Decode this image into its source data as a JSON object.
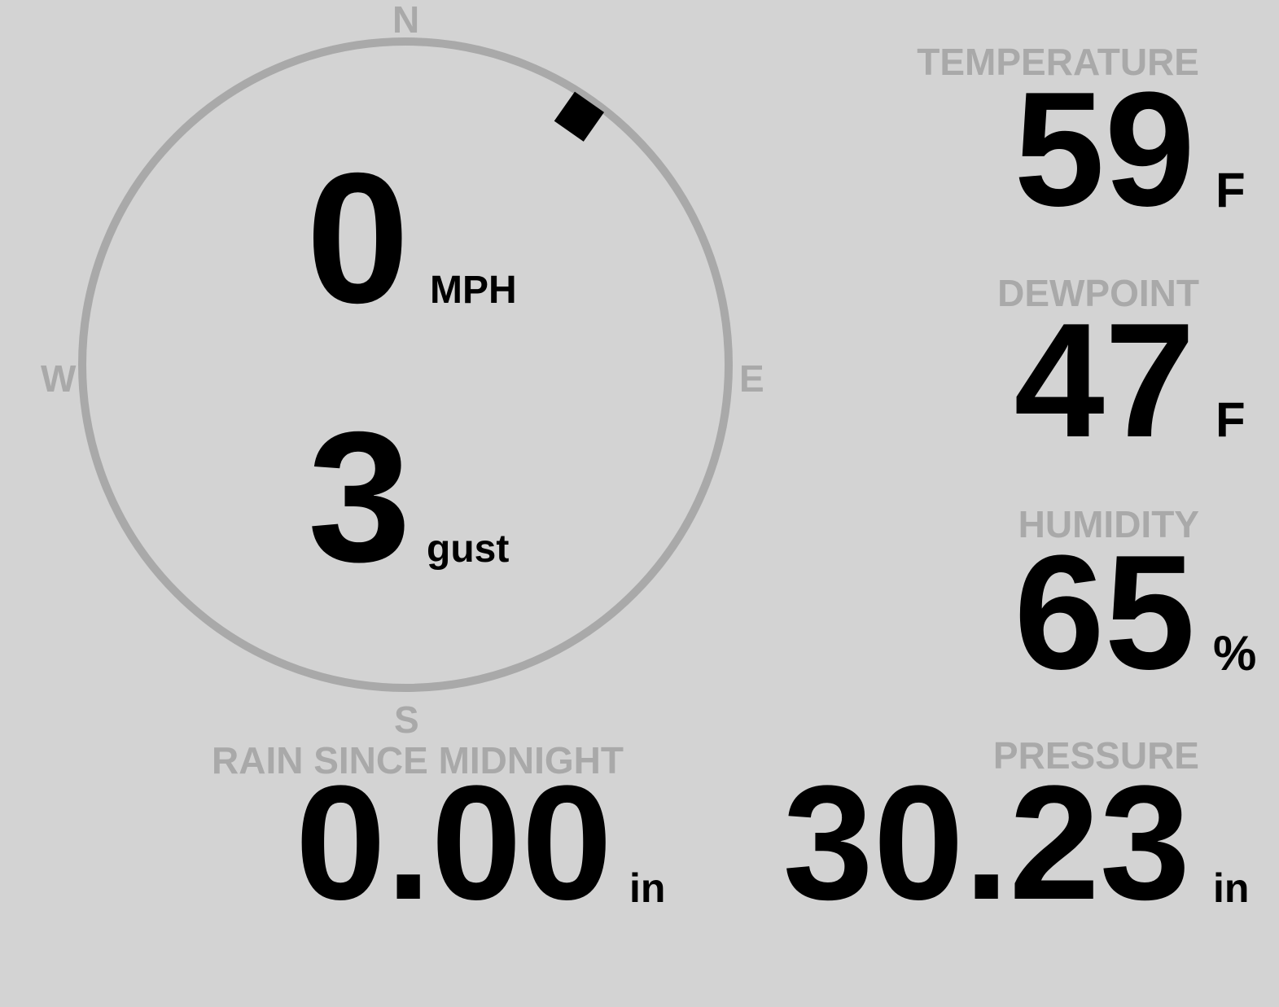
{
  "wind": {
    "speed": "0",
    "speed_unit": "MPH",
    "gust": "3",
    "gust_unit": "gust",
    "direction_degrees": 35,
    "compass": {
      "n": "N",
      "e": "E",
      "s": "S",
      "w": "W"
    }
  },
  "temperature": {
    "label": "TEMPERATURE",
    "value": "59",
    "unit": "F"
  },
  "dewpoint": {
    "label": "DEWPOINT",
    "value": "47",
    "unit": "F"
  },
  "humidity": {
    "label": "HUMIDITY",
    "value": "65",
    "unit": "%"
  },
  "rain": {
    "label": "RAIN SINCE MIDNIGHT",
    "value": "0.00",
    "unit": "in"
  },
  "pressure": {
    "label": "PRESSURE",
    "value": "30.23",
    "unit": "in"
  },
  "colors": {
    "background": "#d3d3d3",
    "label": "#a9a9a9",
    "value": "#000000",
    "ring": "#a9a9a9"
  }
}
